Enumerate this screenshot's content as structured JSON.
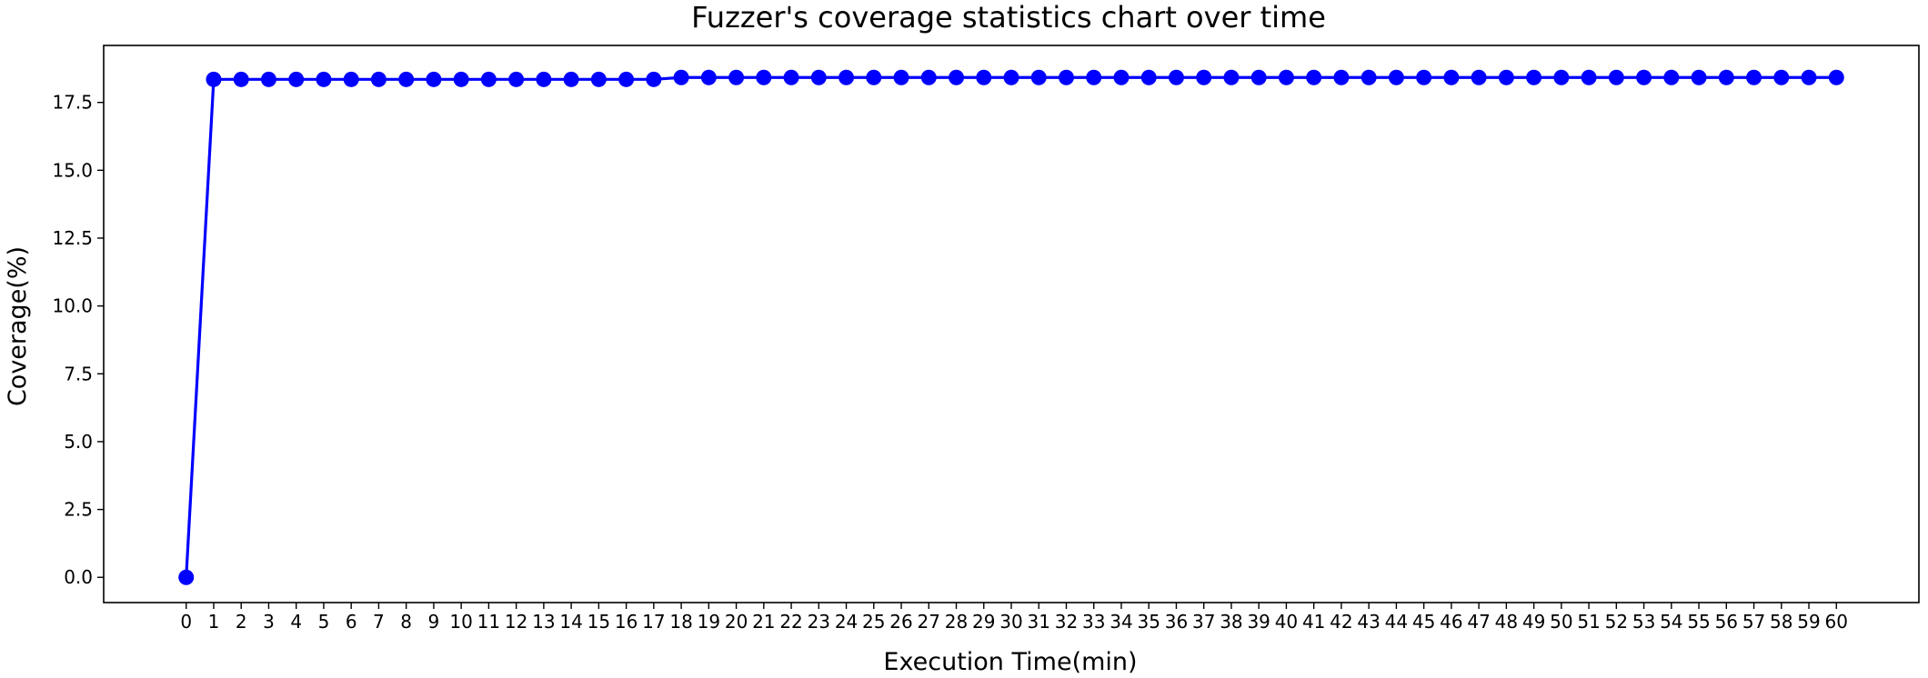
{
  "chart_data": {
    "type": "line",
    "title": "Fuzzer's coverage statistics chart over time",
    "xlabel": "Execution Time(min)",
    "ylabel": "Coverage(%)",
    "xlim": [
      -3,
      63
    ],
    "ylim": [
      -0.93,
      19.6
    ],
    "grid": false,
    "legend": "none",
    "x_ticks": [
      "0",
      "1",
      "2",
      "3",
      "4",
      "5",
      "6",
      "7",
      "8",
      "9",
      "10",
      "11",
      "12",
      "13",
      "14",
      "15",
      "16",
      "17",
      "18",
      "19",
      "20",
      "21",
      "22",
      "23",
      "24",
      "25",
      "26",
      "27",
      "28",
      "29",
      "30",
      "31",
      "32",
      "33",
      "34",
      "35",
      "36",
      "37",
      "38",
      "39",
      "40",
      "41",
      "42",
      "43",
      "44",
      "45",
      "46",
      "47",
      "48",
      "49",
      "50",
      "51",
      "52",
      "53",
      "54",
      "55",
      "56",
      "57",
      "58",
      "59",
      "60"
    ],
    "y_ticks": [
      "0.0",
      "2.5",
      "5.0",
      "7.5",
      "10.0",
      "12.5",
      "15.0",
      "17.5"
    ],
    "series": [
      {
        "name": "",
        "color": "#0000ff",
        "x": [
          0,
          1,
          2,
          3,
          4,
          5,
          6,
          7,
          8,
          9,
          10,
          11,
          12,
          13,
          14,
          15,
          16,
          17,
          18,
          19,
          20,
          21,
          22,
          23,
          24,
          25,
          26,
          27,
          28,
          29,
          30,
          31,
          32,
          33,
          34,
          35,
          36,
          37,
          38,
          39,
          40,
          41,
          42,
          43,
          44,
          45,
          46,
          47,
          48,
          49,
          50,
          51,
          52,
          53,
          54,
          55,
          56,
          57,
          58,
          59,
          60
        ],
        "values": [
          0,
          18.35,
          18.35,
          18.35,
          18.35,
          18.35,
          18.35,
          18.35,
          18.35,
          18.35,
          18.35,
          18.35,
          18.35,
          18.35,
          18.35,
          18.35,
          18.35,
          18.35,
          18.42,
          18.42,
          18.42,
          18.42,
          18.42,
          18.42,
          18.42,
          18.42,
          18.42,
          18.42,
          18.42,
          18.42,
          18.42,
          18.42,
          18.42,
          18.42,
          18.42,
          18.42,
          18.42,
          18.42,
          18.42,
          18.42,
          18.42,
          18.42,
          18.42,
          18.42,
          18.42,
          18.42,
          18.42,
          18.42,
          18.42,
          18.42,
          18.42,
          18.42,
          18.42,
          18.42,
          18.42,
          18.42,
          18.42,
          18.42,
          18.42,
          18.42,
          18.42
        ]
      }
    ]
  }
}
